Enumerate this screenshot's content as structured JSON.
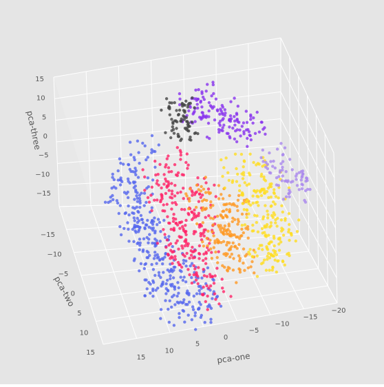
{
  "chart_data": {
    "type": "scatter",
    "projection": "3d",
    "title": "",
    "xlabel": "pca-one",
    "ylabel": "pca-two",
    "zlabel": "pca-three",
    "xlim": [
      -20,
      20
    ],
    "ylim": [
      -20,
      15
    ],
    "zlim": [
      -15,
      15
    ],
    "x_ticks": [
      "15",
      "10",
      "5",
      "0",
      "−5",
      "−10",
      "−15",
      "−20"
    ],
    "y_ticks": [
      "−15",
      "−10",
      "−5",
      "0",
      "5",
      "10",
      "15"
    ],
    "z_ticks": [
      "15",
      "10",
      "5",
      "0",
      "−5",
      "−10",
      "−15"
    ],
    "grid": true,
    "legend": "none",
    "background_color": "#e5e5e5",
    "series": [
      {
        "color": "#5566ee",
        "points": [
          [
            14,
            -2,
            2
          ],
          [
            13,
            4,
            0
          ],
          [
            12,
            8,
            -3
          ],
          [
            11,
            12,
            -6
          ],
          [
            10,
            10,
            -8
          ],
          [
            12,
            -6,
            4
          ],
          [
            9,
            14,
            -10
          ],
          [
            8,
            6,
            -4
          ],
          [
            13,
            0,
            3
          ],
          [
            11,
            3,
            -1
          ],
          [
            7,
            12,
            -9
          ],
          [
            6,
            9,
            -6
          ],
          [
            10,
            -4,
            2
          ],
          [
            9,
            1,
            -2
          ],
          [
            5,
            14,
            -12
          ],
          [
            4,
            10,
            -9
          ],
          [
            8,
            -8,
            6
          ],
          [
            12,
            6,
            1
          ],
          [
            3,
            12,
            -10
          ],
          [
            10,
            8,
            -5
          ]
        ]
      },
      {
        "color": "#ff2266",
        "points": [
          [
            6,
            -6,
            2
          ],
          [
            4,
            -4,
            0
          ],
          [
            2,
            -2,
            -2
          ],
          [
            5,
            0,
            -3
          ],
          [
            3,
            2,
            -5
          ],
          [
            1,
            4,
            -6
          ],
          [
            7,
            -2,
            0
          ],
          [
            0,
            0,
            -4
          ],
          [
            4,
            6,
            -8
          ],
          [
            2,
            8,
            -10
          ],
          [
            6,
            3,
            -6
          ],
          [
            -1,
            -4,
            -1
          ],
          [
            3,
            -8,
            3
          ],
          [
            5,
            4,
            -7
          ],
          [
            1,
            10,
            -11
          ]
        ]
      },
      {
        "color": "#ff9922",
        "points": [
          [
            -3,
            -4,
            -3
          ],
          [
            -5,
            -2,
            -5
          ],
          [
            -2,
            0,
            -6
          ],
          [
            -6,
            0,
            -7
          ],
          [
            -4,
            2,
            -8
          ],
          [
            -1,
            -6,
            -2
          ],
          [
            -7,
            -4,
            -4
          ],
          [
            -3,
            4,
            -9
          ],
          [
            -5,
            6,
            -10
          ],
          [
            -2,
            2,
            -7
          ]
        ]
      },
      {
        "color": "#ffdd22",
        "points": [
          [
            -10,
            -6,
            -2
          ],
          [
            -12,
            -4,
            -4
          ],
          [
            -9,
            -2,
            -5
          ],
          [
            -13,
            -2,
            -7
          ],
          [
            -11,
            0,
            -8
          ],
          [
            -8,
            -8,
            0
          ],
          [
            -14,
            -6,
            -3
          ],
          [
            -10,
            2,
            -9
          ],
          [
            -12,
            4,
            -10
          ],
          [
            -9,
            4,
            -11
          ],
          [
            -15,
            0,
            -8
          ],
          [
            -11,
            -8,
            1
          ]
        ]
      },
      {
        "color": "#8833ee",
        "points": [
          [
            -2,
            -14,
            10
          ],
          [
            -4,
            -13,
            9
          ],
          [
            -6,
            -12,
            8
          ],
          [
            -8,
            -14,
            9
          ],
          [
            -10,
            -13,
            7
          ],
          [
            -5,
            -15,
            11
          ],
          [
            -12,
            -12,
            6
          ],
          [
            -9,
            -11,
            6
          ]
        ]
      },
      {
        "color": "#aa88ee",
        "points": [
          [
            -16,
            -6,
            0
          ],
          [
            -17,
            -4,
            -1
          ],
          [
            -15,
            -8,
            2
          ],
          [
            -18,
            -5,
            -2
          ]
        ]
      },
      {
        "color": "#444444",
        "points": [
          [
            0,
            -14,
            9
          ],
          [
            1,
            -13,
            8
          ],
          [
            -1,
            -15,
            10
          ],
          [
            0,
            -12,
            7
          ]
        ]
      }
    ]
  }
}
